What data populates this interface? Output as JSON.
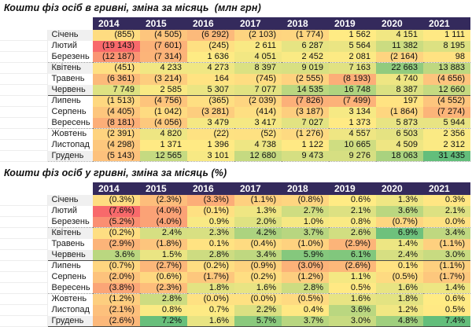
{
  "colors": {
    "header_bg": "#342A5C",
    "header_text": "#FFFFFF",
    "title_text": "#111111",
    "scale_low": "#F8696B",
    "scale_mid": "#FFEB84",
    "scale_high": "#63BE7B"
  },
  "chart_data": [
    {
      "type": "heatmap",
      "title": "Кошти фіз осіб в гривні, зміна за місяць  (млн грн)",
      "unit": "млн грн",
      "columns": [
        "2014",
        "2015",
        "2016",
        "2017",
        "2018",
        "2019",
        "2020",
        "2021"
      ],
      "row_labels": [
        "Січень",
        "Лютий",
        "Березень",
        "Квітень",
        "Травень",
        "Червень",
        "Липень",
        "Серпень",
        "Вересень",
        "Жовтень",
        "Листопад",
        "Грудень"
      ],
      "values": [
        [
          "(855)",
          "(4 505)",
          "(6 292)",
          "(2 103)",
          "(1 774)",
          "1 562",
          "4 151",
          "1 111"
        ],
        [
          "(19 143)",
          "(7 601)",
          "(245)",
          "2 611",
          "6 287",
          "5 564",
          "11 382",
          "8 195"
        ],
        [
          "(12 187)",
          "(7 314)",
          "1 636",
          "4 051",
          "2 452",
          "2 081",
          "(2 164)",
          "98"
        ],
        [
          "(451)",
          "4 233",
          "4 273",
          "8 397",
          "9 019",
          "7 163",
          "22 663",
          "13 883"
        ],
        [
          "(6 361)",
          "(3 214)",
          "164",
          "(745)",
          "(2 555)",
          "(8 193)",
          "4 740",
          "(4 656)"
        ],
        [
          "7 749",
          "2 585",
          "5 307",
          "7 077",
          "14 535",
          "16 748",
          "8 387",
          "12 660"
        ],
        [
          "(1 513)",
          "(4 756)",
          "(365)",
          "(2 039)",
          "(7 826)",
          "(7 499)",
          "197",
          "(4 552)"
        ],
        [
          "(4 405)",
          "(1 042)",
          "(3 281)",
          "(414)",
          "(3 187)",
          "3 134",
          "(1 864)",
          "(7 274)"
        ],
        [
          "(8 181)",
          "(4 056)",
          "3 479",
          "3 417",
          "7 027",
          "1 373",
          "5 873",
          "5 944"
        ],
        [
          "(2 391)",
          "4 820",
          "(22)",
          "(52)",
          "(1 276)",
          "4 557",
          "6 503",
          "2 356"
        ],
        [
          "(4 298)",
          "1 371",
          "1 396",
          "4 738",
          "1 122",
          "10 665",
          "4 509",
          "2 312"
        ],
        [
          "(5 143)",
          "12 565",
          "3 101",
          "12 680",
          "9 473",
          "9 276",
          "18 063",
          "31 435"
        ]
      ],
      "color_scale": {
        "low": "#F8696B",
        "mid": "#FFEB84",
        "high": "#63BE7B",
        "midpoint": "50th-percentile"
      },
      "negative_format": "parentheses"
    },
    {
      "type": "heatmap",
      "title": "Кошти фіз осіб у гривні, зміна за місяць (%)",
      "unit": "%",
      "columns": [
        "2014",
        "2015",
        "2016",
        "2017",
        "2018",
        "2019",
        "2020",
        "2021"
      ],
      "row_labels": [
        "Січень",
        "Лютий",
        "Березень",
        "Квітень",
        "Травень",
        "Червень",
        "Липень",
        "Серпень",
        "Вересень",
        "Жовтень",
        "Листопад",
        "Грудень"
      ],
      "values": [
        [
          "(0.3%)",
          "(2.3%)",
          "(3.3%)",
          "(1.1%)",
          "(0.8%)",
          "0.6%",
          "1.3%",
          "0.3%"
        ],
        [
          "(7.6%)",
          "(4.0%)",
          "(0.1%)",
          "1.3%",
          "2.7%",
          "2.1%",
          "3.6%",
          "2.1%"
        ],
        [
          "(5.2%)",
          "(4.0%)",
          "0.9%",
          "2.0%",
          "1.0%",
          "0.8%",
          "(0.7%)",
          "0.0%"
        ],
        [
          "(0.2%)",
          "2.4%",
          "2.3%",
          "4.2%",
          "3.7%",
          "2.6%",
          "6.9%",
          "3.4%"
        ],
        [
          "(2.9%)",
          "(1.8%)",
          "0.1%",
          "(0.4%)",
          "(1.0%)",
          "(2.9%)",
          "1.4%",
          "(1.1%)"
        ],
        [
          "3.6%",
          "1.5%",
          "2.8%",
          "3.4%",
          "5.9%",
          "6.1%",
          "2.4%",
          "3.0%"
        ],
        [
          "(0.7%)",
          "(2.7%)",
          "(0.2%)",
          "(0.9%)",
          "(3.0%)",
          "(2.6%)",
          "0.1%",
          "(1.1%)"
        ],
        [
          "(2.0%)",
          "(0.6%)",
          "(1.7%)",
          "(0.2%)",
          "(1.2%)",
          "1.1%",
          "(0.5%)",
          "(1.7%)"
        ],
        [
          "(3.8%)",
          "(2.3%)",
          "1.8%",
          "1.6%",
          "2.8%",
          "0.5%",
          "1.6%",
          "1.4%"
        ],
        [
          "(1.2%)",
          "2.8%",
          "(0.0%)",
          "(0.0%)",
          "(0.5%)",
          "1.6%",
          "1.8%",
          "0.6%"
        ],
        [
          "(2.1%)",
          "0.8%",
          "0.7%",
          "2.2%",
          "0.4%",
          "3.6%",
          "1.2%",
          "0.5%"
        ],
        [
          "(2.6%)",
          "7.2%",
          "1.6%",
          "5.7%",
          "3.7%",
          "3.0%",
          "4.8%",
          "7.4%"
        ]
      ],
      "color_scale": {
        "low": "#F8696B",
        "mid": "#FFEB84",
        "high": "#63BE7B",
        "midpoint": "50th-percentile"
      },
      "negative_format": "parentheses"
    }
  ]
}
